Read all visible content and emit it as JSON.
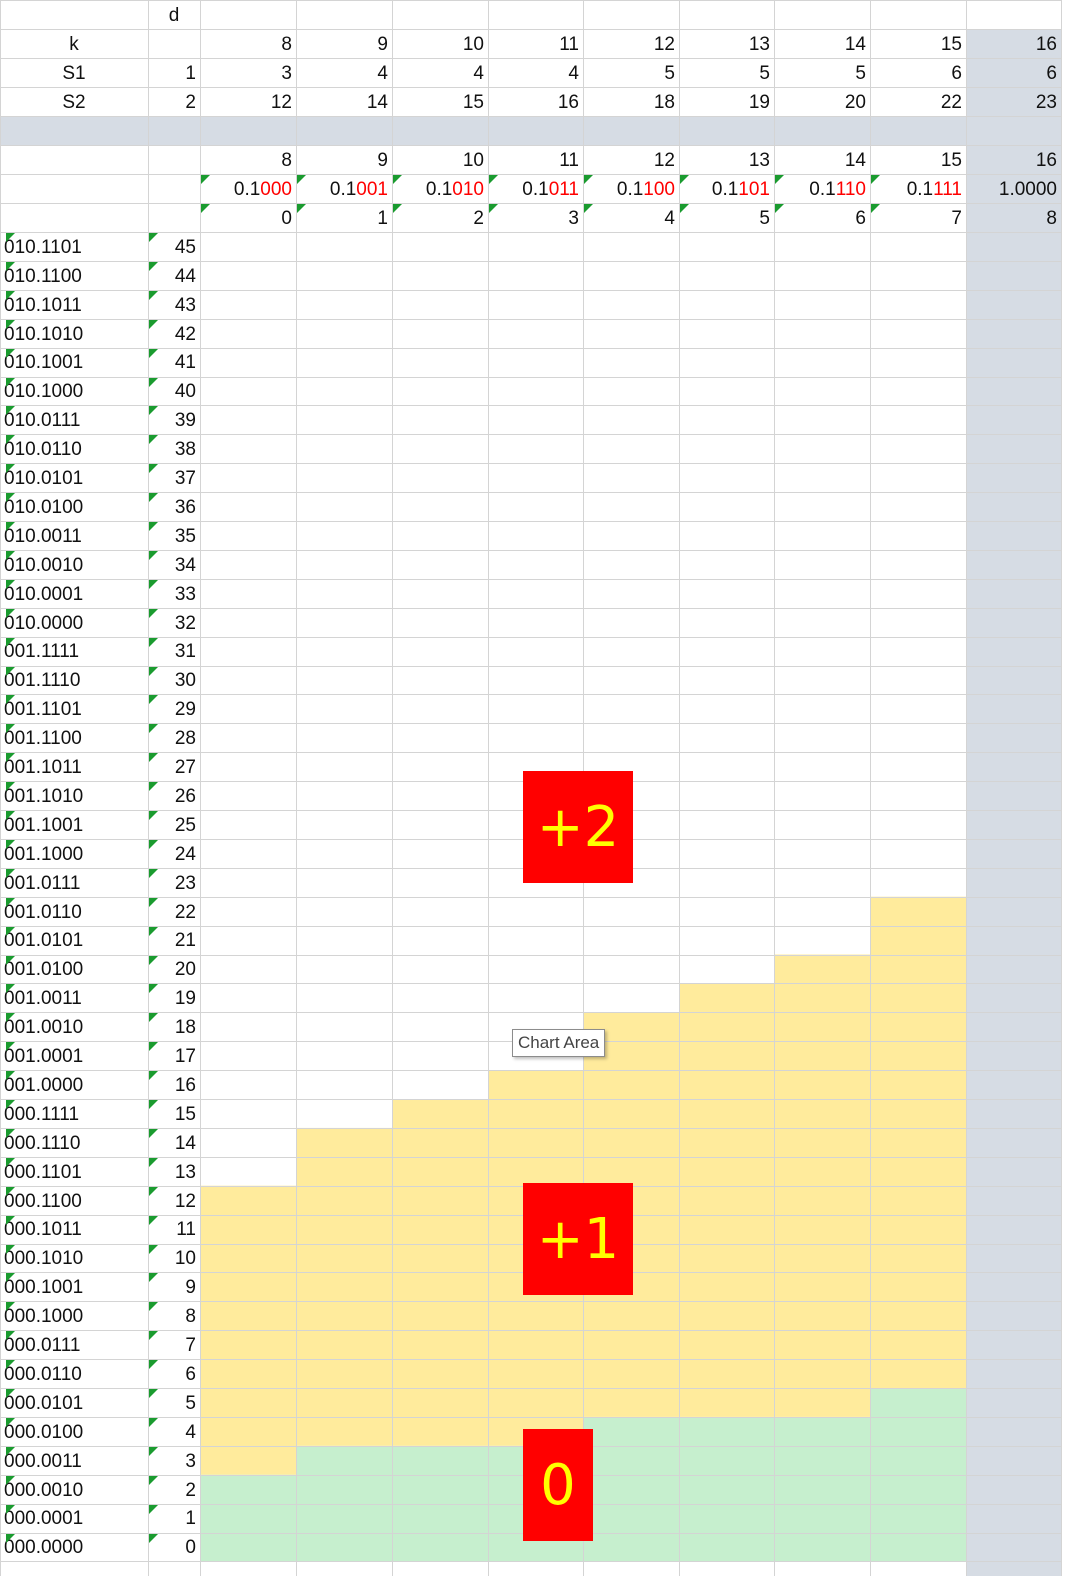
{
  "header": {
    "d_label": "d",
    "k_label": "k",
    "s1_label": "S1",
    "s2_label": "S2",
    "k_first": "1",
    "s2_first": "2",
    "k_values": [
      "8",
      "9",
      "10",
      "11",
      "12",
      "13",
      "14",
      "15",
      "16"
    ],
    "s1_values": [
      "3",
      "4",
      "4",
      "4",
      "5",
      "5",
      "5",
      "6",
      "6"
    ],
    "s2_values": [
      "12",
      "14",
      "15",
      "16",
      "18",
      "19",
      "20",
      "22",
      "23"
    ]
  },
  "second_block": {
    "k_values": [
      "8",
      "9",
      "10",
      "11",
      "12",
      "13",
      "14",
      "15",
      "16"
    ],
    "binary": [
      {
        "black": "0.1",
        "red": "000"
      },
      {
        "black": "0.1",
        "red": "001"
      },
      {
        "black": "0.1",
        "red": "010"
      },
      {
        "black": "0.1",
        "red": "011"
      },
      {
        "black": "0.1",
        "red": "100"
      },
      {
        "black": "0.1",
        "red": "101"
      },
      {
        "black": "0.1",
        "red": "110"
      },
      {
        "black": "0.1",
        "red": "111"
      },
      {
        "black": "1.0000",
        "red": ""
      }
    ],
    "index_values": [
      "0",
      "1",
      "2",
      "3",
      "4",
      "5",
      "6",
      "7",
      "8"
    ]
  },
  "rows": [
    {
      "bin": "010.1101",
      "n": "45"
    },
    {
      "bin": "010.1100",
      "n": "44"
    },
    {
      "bin": "010.1011",
      "n": "43"
    },
    {
      "bin": "010.1010",
      "n": "42"
    },
    {
      "bin": "010.1001",
      "n": "41"
    },
    {
      "bin": "010.1000",
      "n": "40"
    },
    {
      "bin": "010.0111",
      "n": "39"
    },
    {
      "bin": "010.0110",
      "n": "38"
    },
    {
      "bin": "010.0101",
      "n": "37"
    },
    {
      "bin": "010.0100",
      "n": "36"
    },
    {
      "bin": "010.0011",
      "n": "35"
    },
    {
      "bin": "010.0010",
      "n": "34"
    },
    {
      "bin": "010.0001",
      "n": "33"
    },
    {
      "bin": "010.0000",
      "n": "32"
    },
    {
      "bin": "001.1111",
      "n": "31"
    },
    {
      "bin": "001.1110",
      "n": "30"
    },
    {
      "bin": "001.1101",
      "n": "29"
    },
    {
      "bin": "001.1100",
      "n": "28"
    },
    {
      "bin": "001.1011",
      "n": "27"
    },
    {
      "bin": "001.1010",
      "n": "26"
    },
    {
      "bin": "001.1001",
      "n": "25"
    },
    {
      "bin": "001.1000",
      "n": "24"
    },
    {
      "bin": "001.0111",
      "n": "23"
    },
    {
      "bin": "001.0110",
      "n": "22"
    },
    {
      "bin": "001.0101",
      "n": "21"
    },
    {
      "bin": "001.0100",
      "n": "20"
    },
    {
      "bin": "001.0011",
      "n": "19"
    },
    {
      "bin": "001.0010",
      "n": "18"
    },
    {
      "bin": "001.0001",
      "n": "17"
    },
    {
      "bin": "001.0000",
      "n": "16"
    },
    {
      "bin": "000.1111",
      "n": "15"
    },
    {
      "bin": "000.1110",
      "n": "14"
    },
    {
      "bin": "000.1101",
      "n": "13"
    },
    {
      "bin": "000.1100",
      "n": "12"
    },
    {
      "bin": "000.1011",
      "n": "11"
    },
    {
      "bin": "000.1010",
      "n": "10"
    },
    {
      "bin": "000.1001",
      "n": "9"
    },
    {
      "bin": "000.1000",
      "n": "8"
    },
    {
      "bin": "000.0111",
      "n": "7"
    },
    {
      "bin": "000.0110",
      "n": "6"
    },
    {
      "bin": "000.0101",
      "n": "5"
    },
    {
      "bin": "000.0100",
      "n": "4"
    },
    {
      "bin": "000.0011",
      "n": "3"
    },
    {
      "bin": "000.0010",
      "n": "2"
    },
    {
      "bin": "000.0001",
      "n": "1"
    },
    {
      "bin": "000.0000",
      "n": "0"
    }
  ],
  "zones": {
    "s1_thresholds": [
      3,
      4,
      4,
      4,
      5,
      5,
      5,
      6
    ],
    "s2_thresholds": [
      12,
      14,
      15,
      16,
      18,
      19,
      20,
      22
    ],
    "colors": {
      "green": "#c6efce",
      "yellow": "#ffeb9c",
      "grey": "#d6dce4",
      "red_label": "#ff0000",
      "yellow_text": "#ffff00",
      "grid": "#d4d4d4"
    }
  },
  "labels": {
    "plus_two": "+2",
    "plus_one": "+1",
    "zero": "0"
  },
  "tooltip": "Chart Area"
}
